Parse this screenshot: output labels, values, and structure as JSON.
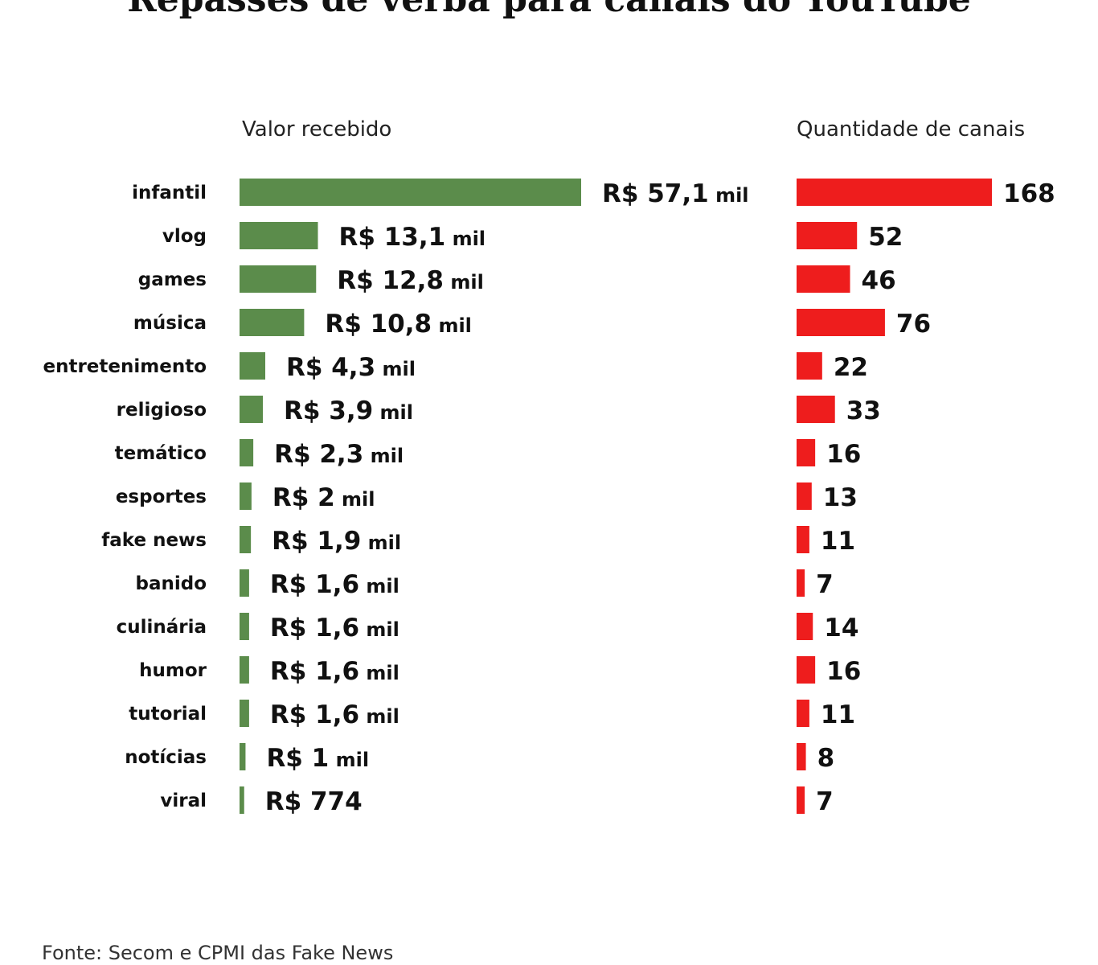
{
  "title": "Repasses de verba para canais do YouTube",
  "source": "Fonte: Secom e CPMI das Fake News",
  "colors": {
    "valor": "#5b8c4b",
    "canais": "#ee1d1d"
  },
  "chart_data": [
    {
      "type": "bar",
      "orientation": "horizontal",
      "title": "Valor recebido",
      "unit": "R$ mil",
      "categories": [
        "infantil",
        "vlog",
        "games",
        "música",
        "entretenimento",
        "religioso",
        "temático",
        "esportes",
        "fake news",
        "banido",
        "culinária",
        "humor",
        "tutorial",
        "notícias",
        "viral"
      ],
      "values": [
        57.1,
        13.1,
        12.8,
        10.8,
        4.3,
        3.9,
        2.3,
        2,
        1.9,
        1.6,
        1.6,
        1.6,
        1.6,
        1,
        0.774
      ],
      "value_labels": [
        [
          "R$ 57,1",
          "mil"
        ],
        [
          "R$ 13,1",
          "mil"
        ],
        [
          "R$ 12,8",
          "mil"
        ],
        [
          "R$ 10,8",
          "mil"
        ],
        [
          "R$ 4,3",
          "mil"
        ],
        [
          "R$ 3,9",
          "mil"
        ],
        [
          "R$ 2,3",
          "mil"
        ],
        [
          "R$ 2",
          "mil"
        ],
        [
          "R$ 1,9",
          "mil"
        ],
        [
          "R$ 1,6",
          "mil"
        ],
        [
          "R$ 1,6",
          "mil"
        ],
        [
          "R$ 1,6",
          "mil"
        ],
        [
          "R$ 1,6",
          "mil"
        ],
        [
          "R$ 1",
          "mil"
        ],
        [
          "R$ 774",
          ""
        ]
      ]
    },
    {
      "type": "bar",
      "orientation": "horizontal",
      "title": "Quantidade de canais",
      "categories": [
        "infantil",
        "vlog",
        "games",
        "música",
        "entretenimento",
        "religioso",
        "temático",
        "esportes",
        "fake news",
        "banido",
        "culinária",
        "humor",
        "tutorial",
        "notícias",
        "viral"
      ],
      "values": [
        168,
        52,
        46,
        76,
        22,
        33,
        16,
        13,
        11,
        7,
        14,
        16,
        11,
        8,
        7
      ],
      "value_labels": [
        "168",
        "52",
        "46",
        "76",
        "22",
        "33",
        "16",
        "13",
        "11",
        "7",
        "14",
        "16",
        "11",
        "8",
        "7"
      ]
    }
  ]
}
